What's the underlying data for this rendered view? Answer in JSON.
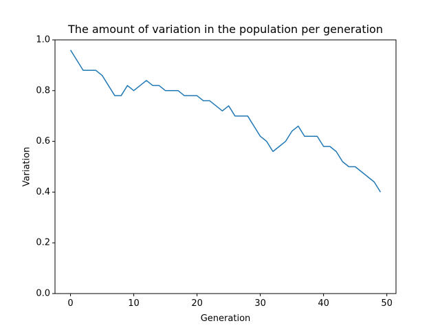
{
  "chart_data": {
    "type": "line",
    "title": "The amount of variation in the population per generation",
    "xlabel": "Generation",
    "ylabel": "Variation",
    "xlim": [
      -2.45,
      51.45
    ],
    "ylim": [
      0.0,
      1.0
    ],
    "x_ticks": [
      0,
      10,
      20,
      30,
      40,
      50
    ],
    "y_ticks": [
      0.0,
      0.2,
      0.4,
      0.6,
      0.8,
      1.0
    ],
    "x_tick_labels": [
      "0",
      "10",
      "20",
      "30",
      "40",
      "50"
    ],
    "y_tick_labels": [
      "0.0",
      "0.2",
      "0.4",
      "0.6",
      "0.8",
      "1.0"
    ],
    "grid": false,
    "line_color": "#1f77b4",
    "x": [
      0,
      1,
      2,
      3,
      4,
      5,
      6,
      7,
      8,
      9,
      10,
      11,
      12,
      13,
      14,
      15,
      16,
      17,
      18,
      19,
      20,
      21,
      22,
      23,
      24,
      25,
      26,
      27,
      28,
      29,
      30,
      31,
      32,
      33,
      34,
      35,
      36,
      37,
      38,
      39,
      40,
      41,
      42,
      43,
      44,
      45,
      46,
      47,
      48,
      49
    ],
    "series": [
      {
        "values": [
          0.96,
          0.92,
          0.88,
          0.88,
          0.88,
          0.86,
          0.82,
          0.78,
          0.78,
          0.82,
          0.8,
          0.82,
          0.84,
          0.82,
          0.82,
          0.8,
          0.8,
          0.8,
          0.78,
          0.78,
          0.78,
          0.76,
          0.76,
          0.74,
          0.72,
          0.74,
          0.7,
          0.7,
          0.7,
          0.66,
          0.62,
          0.6,
          0.56,
          0.58,
          0.6,
          0.64,
          0.66,
          0.62,
          0.62,
          0.62,
          0.58,
          0.58,
          0.56,
          0.52,
          0.5,
          0.5,
          0.48,
          0.46,
          0.44,
          0.4
        ]
      }
    ]
  }
}
